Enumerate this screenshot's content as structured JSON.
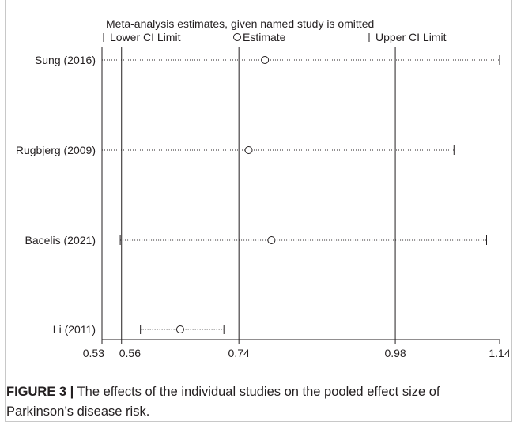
{
  "chart_data": {
    "type": "scatter",
    "title": "Meta-analysis estimates, given named study is omitted",
    "legend": {
      "lower": "Lower CI Limit",
      "estimate": "Estimate",
      "upper": "Upper CI Limit"
    },
    "x_ticks": [
      "0.53",
      "0.56",
      "0.74",
      "0.98",
      "1.14"
    ],
    "x_tick_values": [
      0.53,
      0.56,
      0.74,
      0.98,
      1.14
    ],
    "reference_lines": [
      0.56,
      0.74,
      0.98
    ],
    "xlim": [
      0.53,
      1.14
    ],
    "studies": [
      {
        "label": "Sung (2016)",
        "estimate": 0.78,
        "lower": 0.53,
        "upper": 1.14
      },
      {
        "label": "Rugbjerg (2009)",
        "estimate": 0.755,
        "lower": 0.53,
        "upper": 1.07
      },
      {
        "label": "Bacelis (2021)",
        "estimate": 0.79,
        "lower": 0.558,
        "upper": 1.12
      },
      {
        "label": "Li (2011)",
        "estimate": 0.65,
        "lower": 0.589,
        "upper": 0.717
      }
    ]
  },
  "caption": {
    "label": "FIGURE 3 |",
    "text": " The effects of the individual studies on the pooled effect size of Parkinson’s disease risk."
  }
}
